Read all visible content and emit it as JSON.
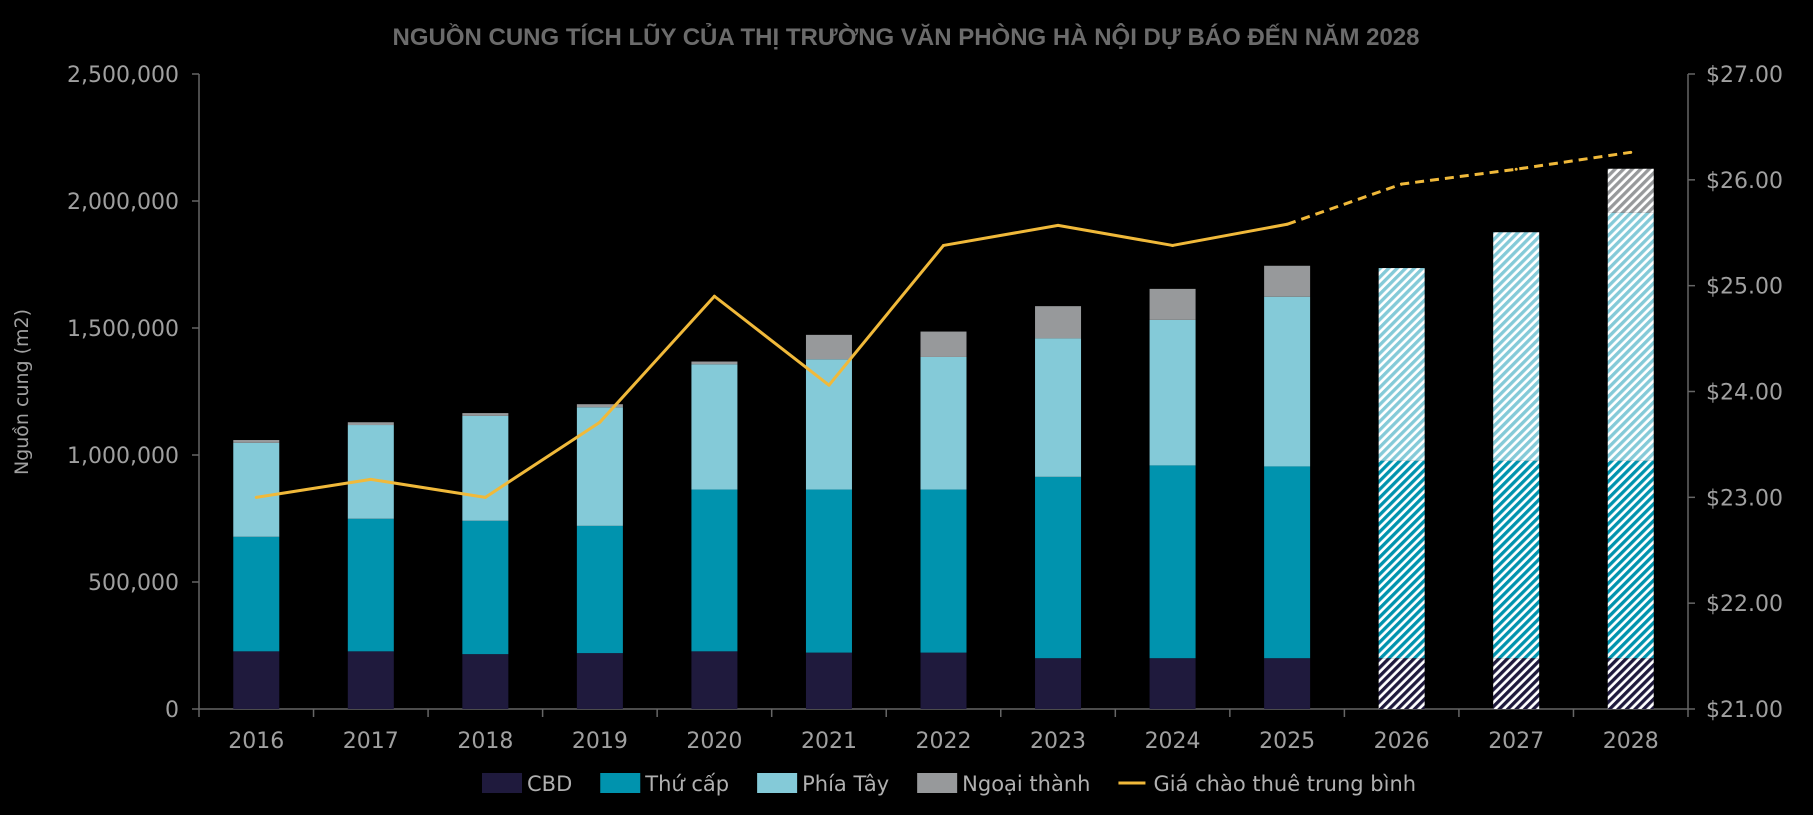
{
  "chart_data": {
    "type": "bar",
    "stacked": true,
    "title": "NGUỒN CUNG TÍCH LŨY CỦA THỊ TRƯỜNG VĂN PHÒNG HÀ NỘI DỰ BÁO ĐẾN NĂM 2028",
    "xlabel": "",
    "ylabel": "Nguồn cung (m2)",
    "ylim": [
      0,
      2500000
    ],
    "y_ticks": [
      "0",
      "500,000",
      "1,000,000",
      "1,500,000",
      "2,000,000",
      "2,500,000"
    ],
    "y2lim": [
      21,
      27
    ],
    "y2_ticks": [
      "$21.00",
      "$22.00",
      "$23.00",
      "$24.00",
      "$25.00",
      "$26.00",
      "$27.00"
    ],
    "grid": false,
    "legend_position": "bottom",
    "categories": [
      "2016",
      "2017",
      "2018",
      "2019",
      "2020",
      "2021",
      "2022",
      "2023",
      "2024",
      "2025",
      "2026",
      "2027",
      "2028"
    ],
    "forecast_categories": [
      "2026",
      "2027",
      "2028"
    ],
    "series": [
      {
        "name": "CBD",
        "color": "#1f1a3d",
        "values": [
          227000,
          227000,
          216000,
          220000,
          227000,
          222000,
          222000,
          200000,
          200000,
          200000,
          200000,
          200000,
          200000
        ]
      },
      {
        "name": "Thứ cấp",
        "color": "#0093ae",
        "values": [
          451000,
          522000,
          525000,
          501000,
          637000,
          642000,
          642000,
          714000,
          759000,
          755000,
          777000,
          777000,
          777000
        ]
      },
      {
        "name": "Phía Tây",
        "color": "#84cad8",
        "values": [
          370000,
          369000,
          413000,
          467000,
          493000,
          513000,
          522000,
          545000,
          573000,
          668000,
          759000,
          900000,
          977000
        ]
      },
      {
        "name": "Ngoại thành",
        "color": "#97999b",
        "values": [
          11000,
          11000,
          11000,
          12000,
          11000,
          96000,
          100000,
          127000,
          122000,
          122000,
          0,
          0,
          173000
        ]
      },
      {
        "name": "Giá chào thuê trung bình",
        "type": "line",
        "axis": "right",
        "color": "#f0b93a",
        "dashed_from": "2025",
        "values": [
          23.0,
          23.17,
          23.0,
          23.71,
          24.9,
          24.06,
          25.38,
          25.57,
          25.38,
          25.58,
          25.96,
          26.1,
          26.26
        ]
      }
    ]
  }
}
